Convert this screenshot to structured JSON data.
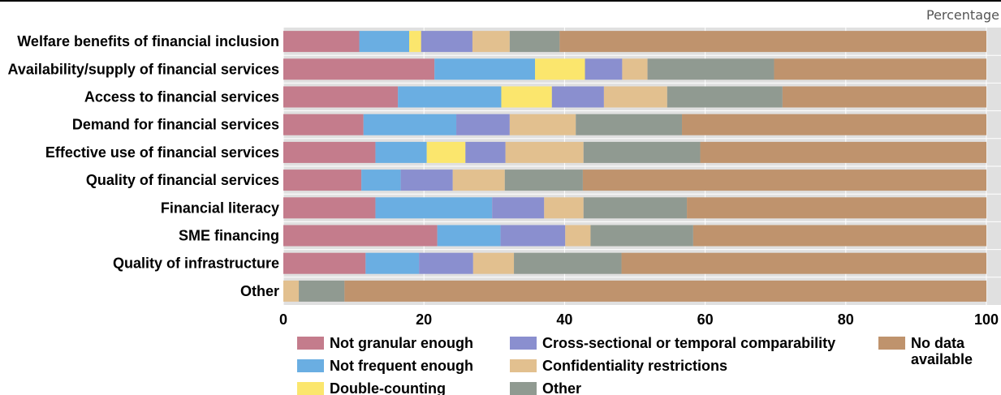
{
  "chart_data": {
    "type": "bar",
    "orientation": "horizontal",
    "stacked": true,
    "unit_label": "Percentage",
    "categories": [
      "Welfare benefits of financial inclusion",
      "Availability/supply of financial services",
      "Access to financial services",
      "Demand for financial services",
      "Effective use of financial services",
      "Quality of financial services",
      "Financial literacy",
      "SME financing",
      "Quality of infrastructure",
      "Other"
    ],
    "series": [
      {
        "name": "Not granular enough",
        "color": "#c47c8c",
        "values": [
          10.8,
          21.5,
          16.3,
          11.4,
          13.1,
          11.1,
          13.1,
          21.9,
          11.7,
          0
        ]
      },
      {
        "name": "Not frequent enough",
        "color": "#6aaee2",
        "values": [
          7.1,
          14.3,
          14.7,
          13.2,
          7.3,
          5.6,
          16.6,
          9.0,
          7.6,
          0
        ]
      },
      {
        "name": "Double-counting",
        "color": "#fbe66d",
        "values": [
          1.7,
          7.1,
          7.2,
          0,
          5.5,
          0,
          0,
          0,
          0,
          0
        ]
      },
      {
        "name": "Cross-sectional or temporal comparability",
        "color": "#8a8fcf",
        "values": [
          7.3,
          5.3,
          7.4,
          7.6,
          5.7,
          7.4,
          7.4,
          9.2,
          7.7,
          0
        ]
      },
      {
        "name": "Confidentiality restrictions",
        "color": "#e2c08f",
        "values": [
          5.3,
          3.6,
          9.0,
          9.4,
          11.1,
          7.4,
          5.6,
          3.6,
          5.8,
          2.2
        ]
      },
      {
        "name": "Other",
        "color": "#909a91",
        "values": [
          7.1,
          18.0,
          16.4,
          15.1,
          16.6,
          11.1,
          14.7,
          14.6,
          15.3,
          6.5
        ]
      },
      {
        "name": "No data\navailable",
        "color": "#bf936d",
        "values": [
          60.7,
          30.2,
          29.0,
          43.3,
          40.7,
          57.4,
          42.6,
          41.7,
          51.9,
          91.3
        ]
      }
    ],
    "xlim": [
      0,
      100
    ],
    "xticks": [
      0,
      20,
      40,
      60,
      80,
      100
    ],
    "grid": "vertical",
    "legend_position": "bottom"
  }
}
